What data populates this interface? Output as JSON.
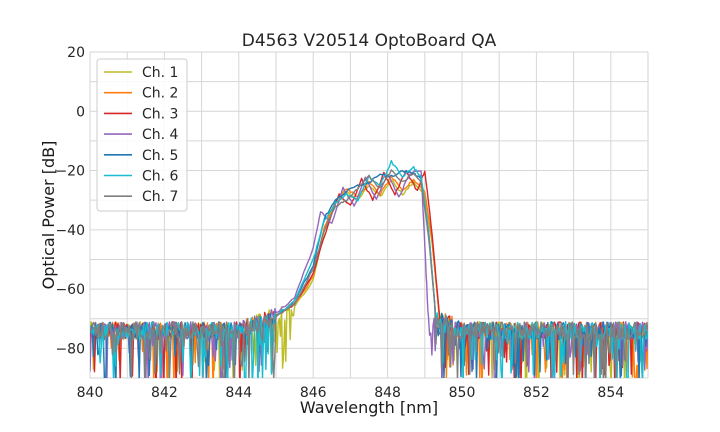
{
  "chart_data": {
    "type": "line",
    "title": "D4563 V20514 OptoBoard QA",
    "xlabel": "Wavelength [nm]",
    "ylabel": "Optical Power [dB]",
    "xlim": [
      840,
      855
    ],
    "ylim": [
      -90,
      20
    ],
    "xticks": [
      "840",
      "842",
      "844",
      "846",
      "848",
      "850",
      "852",
      "854"
    ],
    "yticks": [
      "20",
      "0",
      "−20",
      "−40",
      "−60",
      "−80"
    ],
    "grid": true,
    "legend": "top-left",
    "series": [
      {
        "name": "Ch. 1",
        "color": "#bcbd22",
        "x": [
          840,
          844,
          845,
          845.5,
          846,
          846.3,
          846.6,
          846.9,
          847.2,
          847.5,
          847.8,
          848.1,
          848.4,
          848.7,
          849.0,
          849.2,
          849.4,
          850,
          855
        ],
        "y": [
          -74,
          -74,
          -69,
          -66,
          -57,
          -40,
          -31,
          -27,
          -30,
          -25,
          -29,
          -23,
          -28,
          -24,
          -28,
          -45,
          -70,
          -74,
          -74
        ]
      },
      {
        "name": "Ch. 2",
        "color": "#ff7f0e",
        "x": [
          840,
          844,
          845,
          845.5,
          846,
          846.3,
          846.6,
          846.9,
          847.2,
          847.5,
          847.8,
          848.1,
          848.4,
          848.7,
          849.0,
          849.2,
          849.4,
          850,
          855
        ],
        "y": [
          -74,
          -74,
          -69,
          -65,
          -56,
          -39,
          -30,
          -26,
          -29,
          -24,
          -28,
          -22,
          -27,
          -23,
          -27,
          -44,
          -70,
          -74,
          -74
        ]
      },
      {
        "name": "Ch. 3",
        "color": "#d62728",
        "x": [
          840,
          844,
          845,
          845.5,
          846,
          846.4,
          846.7,
          847.0,
          847.3,
          847.6,
          847.9,
          848.2,
          848.5,
          848.8,
          849.0,
          849.2,
          849.4,
          850,
          855
        ],
        "y": [
          -74,
          -74,
          -69,
          -65,
          -55,
          -38,
          -28,
          -32,
          -23,
          -30,
          -21,
          -28,
          -20,
          -27,
          -20,
          -42,
          -70,
          -74,
          -74
        ]
      },
      {
        "name": "Ch. 4",
        "color": "#9467bd",
        "x": [
          840,
          844,
          845,
          845.5,
          846,
          846.2,
          846.5,
          846.8,
          847.1,
          847.4,
          847.7,
          848.0,
          848.3,
          848.6,
          848.9,
          849.0,
          849.1,
          850,
          855
        ],
        "y": [
          -74,
          -74,
          -68,
          -63,
          -46,
          -34,
          -38,
          -26,
          -32,
          -22,
          -30,
          -21,
          -29,
          -21,
          -20,
          -45,
          -72,
          -74,
          -74
        ]
      },
      {
        "name": "Ch. 5",
        "color": "#1f77b4",
        "x": [
          840,
          844,
          845,
          845.5,
          846,
          846.3,
          846.6,
          846.9,
          847.2,
          847.5,
          847.8,
          848.1,
          848.4,
          848.7,
          848.9,
          849.1,
          849.3,
          850,
          855
        ],
        "y": [
          -74,
          -74,
          -69,
          -64,
          -52,
          -36,
          -30,
          -27,
          -25,
          -24,
          -21,
          -22,
          -20,
          -21,
          -23,
          -40,
          -70,
          -74,
          -74
        ]
      },
      {
        "name": "Ch. 6",
        "color": "#17becf",
        "x": [
          840,
          844,
          845,
          845.5,
          846,
          846.3,
          846.6,
          846.9,
          847.2,
          847.5,
          847.8,
          848.1,
          848.4,
          848.7,
          848.9,
          849.1,
          849.3,
          850,
          855
        ],
        "y": [
          -74,
          -74,
          -69,
          -64,
          -50,
          -37,
          -31,
          -28,
          -30,
          -22,
          -25,
          -17,
          -22,
          -19,
          -22,
          -40,
          -70,
          -74,
          -74
        ]
      },
      {
        "name": "Ch. 7",
        "color": "#7f7f7f",
        "x": [
          840,
          844,
          845,
          845.5,
          846,
          846.3,
          846.6,
          846.9,
          847.2,
          847.5,
          847.8,
          848.1,
          848.4,
          848.7,
          848.9,
          849.1,
          849.3,
          850,
          855
        ],
        "y": [
          -74,
          -74,
          -69,
          -65,
          -53,
          -40,
          -32,
          -30,
          -26,
          -22,
          -26,
          -20,
          -24,
          -21,
          -24,
          -42,
          -70,
          -74,
          -74
        ]
      }
    ]
  }
}
